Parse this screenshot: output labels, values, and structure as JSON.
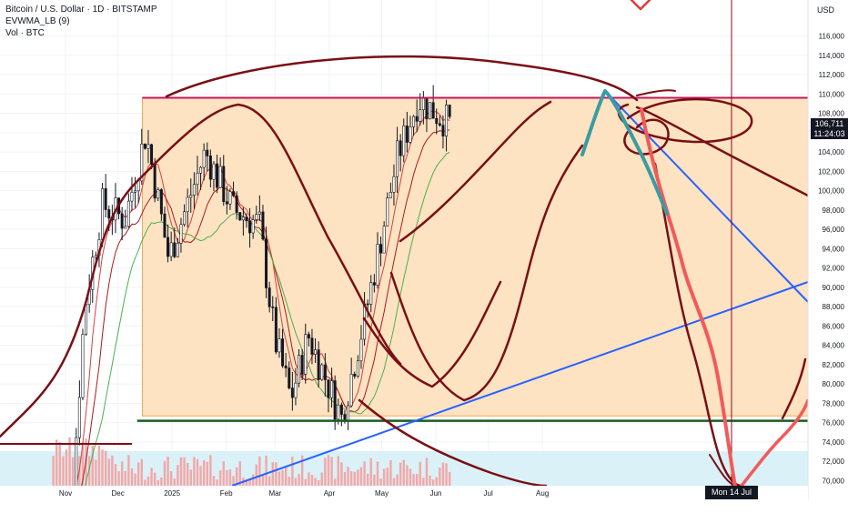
{
  "legend": {
    "symbol_line": "Bitcoin / U.S. Dollar · 1D · BITSTAMP",
    "indicator_line": "EVWMA_LB (9)",
    "volume_line": "Vol · BTC"
  },
  "price_scale": {
    "currency": "USD",
    "current_price": "106,711",
    "countdown": "11:24:03"
  },
  "crosshair_date": "Mon 14 Jul '25",
  "colors": {
    "box_fill": "#fde3c2",
    "box_border": "#f5a55a",
    "drawing_dark_red": "#7a0f14",
    "drawing_red": "#f25a5a",
    "drawing_teal": "#3a9ba3",
    "trend_blue": "#2962ff",
    "support_green": "#1b5e20",
    "resistance_red": "#c2185b",
    "candle_up": "#131722",
    "candle_down": "#131722",
    "volume_bar": "#f4a7a7",
    "volume_area": "#d9f1f7"
  },
  "chart_data": {
    "type": "candlestick",
    "title": "Bitcoin / U.S. Dollar · 1D · BITSTAMP",
    "ylabel": "USD",
    "ylim": [
      70000,
      117000
    ],
    "y_ticks": [
      "116,000",
      "114,000",
      "112,000",
      "110,000",
      "108,000",
      "106,000",
      "104,000",
      "102,000",
      "100,000",
      "98,000",
      "96,000",
      "94,000",
      "92,000",
      "90,000",
      "88,000",
      "86,000",
      "84,000",
      "82,000",
      "80,000",
      "78,000",
      "76,000",
      "74,000",
      "72,000",
      "70,000"
    ],
    "x_ticks": [
      "Nov",
      "Dec",
      "2025",
      "Feb",
      "Mar",
      "Apr",
      "May",
      "Jun",
      "Jul",
      "Aug"
    ],
    "current_price": 106711,
    "levels": {
      "resistance": 109600,
      "support": 76200
    },
    "price_path": [
      [
        "2024-10-25",
        67500
      ],
      [
        "2024-11-05",
        69000
      ],
      [
        "2024-11-12",
        88000
      ],
      [
        "2024-11-22",
        98500
      ],
      [
        "2024-12-05",
        97000
      ],
      [
        "2024-12-17",
        106000
      ],
      [
        "2024-12-30",
        93000
      ],
      [
        "2025-01-20",
        104000
      ],
      [
        "2025-02-05",
        98000
      ],
      [
        "2025-02-20",
        96500
      ],
      [
        "2025-03-01",
        84500
      ],
      [
        "2025-03-10",
        78500
      ],
      [
        "2025-03-20",
        85000
      ],
      [
        "2025-04-08",
        76500
      ],
      [
        "2025-04-22",
        87500
      ],
      [
        "2025-05-10",
        103500
      ],
      [
        "2025-05-22",
        109500
      ],
      [
        "2025-06-10",
        106711
      ]
    ]
  }
}
